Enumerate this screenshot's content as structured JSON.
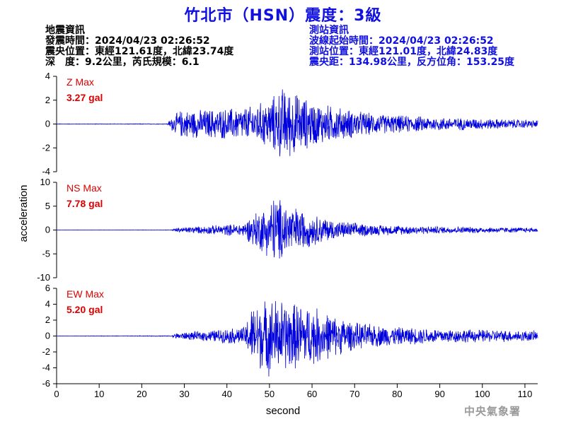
{
  "title": "竹北市（HSN）震度：3級",
  "quake_info": {
    "heading": "地震資訊",
    "time": "發震時間：2024/04/23 02:26:52",
    "epicenter": "震央位置：東經121.61度，北緯23.74度",
    "depth_mag": "深　度：9.2公里，芮氏規模：6.1"
  },
  "station_info": {
    "heading": "測站資訊",
    "wave_start": "波線起始時間：2024/04/23 02:26:52",
    "location": "測站位置：東經121.01度，北緯24.83度",
    "distance": "震央距：134.98公里，反方位角：153.25度"
  },
  "watermark": "中央氣象署",
  "colors": {
    "title": "#1010e0",
    "trace": "#0000dd",
    "label": "#dd0000",
    "axis": "#000000"
  },
  "chart_data": {
    "type": "line",
    "xlabel": "second",
    "ylabel": "acceleration",
    "xlim": [
      0,
      113
    ],
    "xticks": [
      0,
      10,
      20,
      30,
      40,
      50,
      60,
      70,
      80,
      90,
      100,
      110
    ],
    "grid": false,
    "panels": [
      {
        "component": "Z",
        "label": "Z Max",
        "max_label": "3.27 gal",
        "peak": 3.27,
        "ylim": [
          -4,
          4
        ],
        "yticks": [
          -4,
          -2,
          0,
          2,
          4
        ],
        "envelope": [
          [
            0,
            0.02
          ],
          [
            26,
            0.03
          ],
          [
            27,
            0.6
          ],
          [
            29,
            1.2
          ],
          [
            35,
            1.3
          ],
          [
            45,
            1.5
          ],
          [
            50,
            2.2
          ],
          [
            53,
            3.27
          ],
          [
            56,
            2.8
          ],
          [
            60,
            2.0
          ],
          [
            66,
            1.5
          ],
          [
            75,
            0.9
          ],
          [
            90,
            0.6
          ],
          [
            113,
            0.35
          ]
        ]
      },
      {
        "component": "NS",
        "label": "NS Max",
        "max_label": "7.78 gal",
        "peak": 7.78,
        "ylim": [
          -10,
          10
        ],
        "yticks": [
          -10,
          -5,
          0,
          5,
          10
        ],
        "envelope": [
          [
            0,
            0.02
          ],
          [
            27,
            0.05
          ],
          [
            28,
            0.5
          ],
          [
            35,
            0.9
          ],
          [
            44,
            1.5
          ],
          [
            46,
            3.5
          ],
          [
            50,
            6.0
          ],
          [
            51,
            7.78
          ],
          [
            55,
            5.5
          ],
          [
            60,
            3.5
          ],
          [
            66,
            2.0
          ],
          [
            75,
            1.2
          ],
          [
            90,
            0.8
          ],
          [
            113,
            0.5
          ]
        ]
      },
      {
        "component": "EW",
        "label": "EW Max",
        "max_label": "5.20 gal",
        "peak": 5.2,
        "ylim": [
          -6,
          6
        ],
        "yticks": [
          -6,
          -4,
          -2,
          0,
          2,
          4,
          6
        ],
        "envelope": [
          [
            0,
            0.02
          ],
          [
            27,
            0.05
          ],
          [
            28,
            0.4
          ],
          [
            35,
            0.7
          ],
          [
            44,
            1.2
          ],
          [
            46,
            4.0
          ],
          [
            50,
            5.2
          ],
          [
            55,
            4.5
          ],
          [
            60,
            4.0
          ],
          [
            64,
            3.0
          ],
          [
            70,
            1.8
          ],
          [
            80,
            1.2
          ],
          [
            95,
            0.9
          ],
          [
            113,
            0.7
          ]
        ]
      }
    ]
  }
}
